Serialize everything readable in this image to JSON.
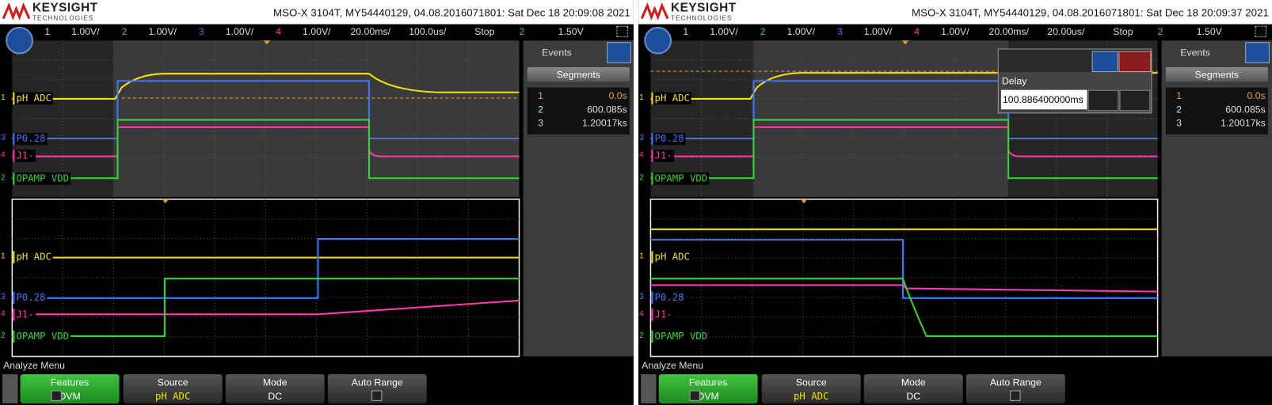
{
  "screens": [
    {
      "brand": "KEYSIGHT",
      "brand_sub": "TECHNOLOGIES",
      "header": "MSO-X 3104T, MY54440129, 04.08.2016071801: Sat Dec 18 20:09:08 2021",
      "channels": [
        {
          "num": "1",
          "scale": "1.00V/"
        },
        {
          "num": "2",
          "scale": "1.00V/"
        },
        {
          "num": "3",
          "scale": "1.00V/"
        },
        {
          "num": "4",
          "scale": "1.00V/"
        }
      ],
      "timebase": "20.00ms/",
      "delay": "100.0us/",
      "run_state": "Stop",
      "trigger_channel": "2",
      "trigger_level": "1.50V",
      "trace_labels": [
        "pH ADC",
        "P0.28",
        "J1-",
        "OPAMP VDD"
      ],
      "events": {
        "title": "Events",
        "button": "Segments",
        "rows": [
          [
            "1",
            "0.0s"
          ],
          [
            "2",
            "600.085s"
          ],
          [
            "3",
            "1.20017ks"
          ]
        ]
      },
      "menu_title": "Analyze Menu",
      "softkeys": [
        {
          "label": "Features",
          "value": "DVM"
        },
        {
          "label": "Source",
          "value": "pH ADC"
        },
        {
          "label": "Mode",
          "value": "DC"
        },
        {
          "label": "Auto Range"
        }
      ]
    },
    {
      "brand": "KEYSIGHT",
      "brand_sub": "TECHNOLOGIES",
      "header": "MSO-X 3104T, MY54440129, 04.08.2016071801: Sat Dec 18 20:09:37 2021",
      "channels": [
        {
          "num": "1",
          "scale": "1.00V/"
        },
        {
          "num": "2",
          "scale": "1.00V/"
        },
        {
          "num": "3",
          "scale": "1.00V/"
        },
        {
          "num": "4",
          "scale": "1.00V/"
        }
      ],
      "timebase": "20.00ms/",
      "delay": "20.00us/",
      "run_state": "Stop",
      "trigger_channel": "2",
      "trigger_level": "1.50V",
      "trace_labels": [
        "pH ADC",
        "P0.28",
        "J1-",
        "OPAMP VDD"
      ],
      "events": {
        "title": "Events",
        "button": "Segments",
        "rows": [
          [
            "1",
            "0.0s"
          ],
          [
            "2",
            "600.085s"
          ],
          [
            "3",
            "1.20017ks"
          ]
        ]
      },
      "delay_dialog": {
        "title": "Delay",
        "value": "100.886400000ms"
      },
      "menu_title": "Analyze Menu",
      "softkeys": [
        {
          "label": "Features",
          "value": "DVM"
        },
        {
          "label": "Source",
          "value": "pH ADC"
        },
        {
          "label": "Mode",
          "value": "DC"
        },
        {
          "label": "Auto Range"
        }
      ]
    }
  ]
}
